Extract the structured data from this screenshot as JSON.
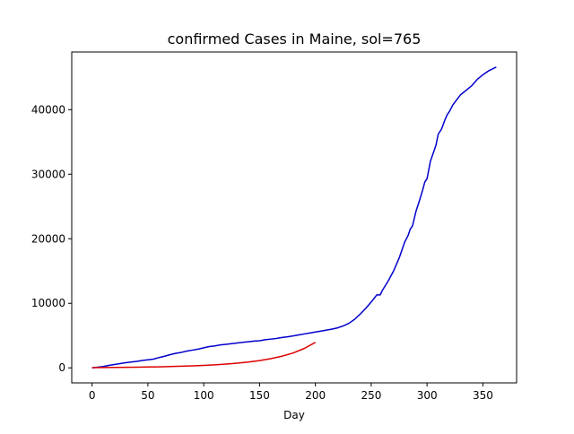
{
  "chart_data": {
    "type": "line",
    "title": "confirmed Cases in Maine, sol=765",
    "xlabel": "Day",
    "ylabel": "",
    "xlim": [
      -18.2,
      380.2
    ],
    "ylim": [
      -2330,
      48930
    ],
    "xticks": [
      0,
      50,
      100,
      150,
      200,
      250,
      300,
      350
    ],
    "yticks": [
      0,
      10000,
      20000,
      30000,
      40000
    ],
    "grid": false,
    "legend": "none",
    "series": [
      {
        "color": "#0000cc",
        "style": "solid",
        "x": [
          0,
          5,
          10,
          15,
          20,
          25,
          30,
          35,
          40,
          45,
          50,
          55,
          60,
          65,
          70,
          75,
          80,
          85,
          90,
          95,
          100,
          105,
          110,
          115,
          120,
          125,
          130,
          135,
          140,
          145,
          150,
          155,
          160,
          165,
          170,
          175,
          180,
          185,
          190,
          195,
          200,
          205,
          210,
          215,
          220,
          225,
          230,
          235,
          240,
          245,
          250,
          255,
          258,
          260,
          265,
          270,
          275,
          280,
          283,
          285,
          287,
          290,
          293,
          296,
          298,
          300,
          303,
          306,
          308,
          310,
          313,
          316,
          318,
          320,
          323,
          326,
          330,
          335,
          340,
          345,
          350,
          355,
          362
        ],
        "y": [
          0,
          100,
          200,
          380,
          520,
          650,
          800,
          900,
          1000,
          1150,
          1250,
          1350,
          1600,
          1800,
          2050,
          2250,
          2400,
          2600,
          2750,
          2900,
          3100,
          3300,
          3400,
          3550,
          3650,
          3750,
          3850,
          3950,
          4050,
          4150,
          4200,
          4350,
          4450,
          4550,
          4700,
          4800,
          4950,
          5100,
          5250,
          5400,
          5550,
          5700,
          5850,
          6000,
          6200,
          6500,
          6900,
          7500,
          8300,
          9200,
          10200,
          11300,
          11300,
          12000,
          13400,
          15000,
          17000,
          19500,
          20500,
          21500,
          22000,
          24200,
          25800,
          27500,
          28800,
          29300,
          32000,
          33500,
          34500,
          36200,
          37000,
          38400,
          39200,
          39700,
          40700,
          41400,
          42300,
          43000,
          43700,
          44700,
          45400,
          46000,
          46600
        ]
      },
      {
        "color": "#dd0000",
        "style": "solid",
        "x": [
          0,
          10,
          20,
          30,
          40,
          50,
          60,
          70,
          80,
          90,
          100,
          110,
          120,
          130,
          140,
          150,
          160,
          170,
          180,
          190,
          200
        ],
        "y": [
          30,
          45,
          60,
          80,
          100,
          130,
          160,
          200,
          250,
          310,
          380,
          470,
          580,
          720,
          900,
          1130,
          1420,
          1800,
          2300,
          3000,
          3950
        ]
      }
    ]
  }
}
